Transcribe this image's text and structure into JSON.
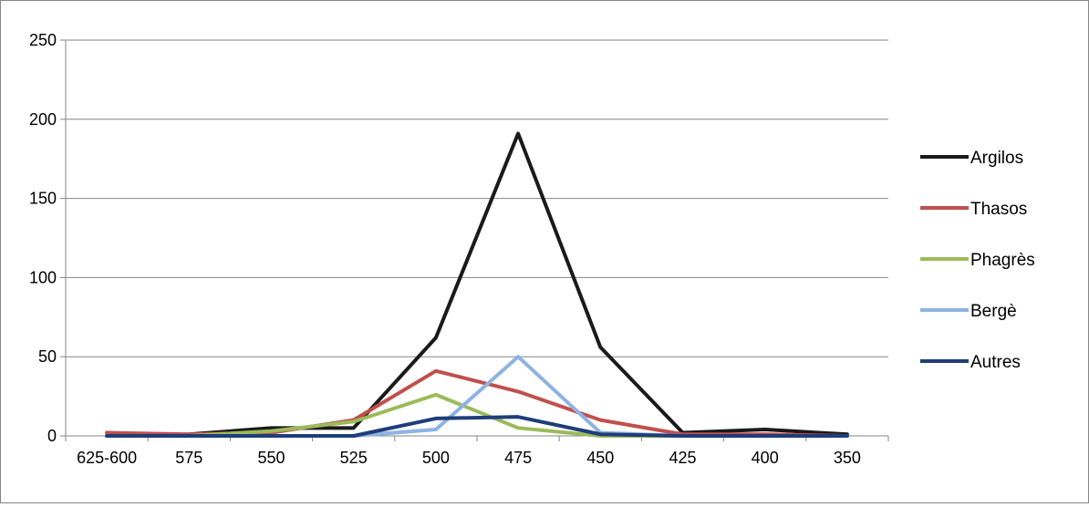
{
  "chart_data": {
    "type": "line",
    "title": "",
    "xlabel": "",
    "ylabel": "",
    "categories": [
      "625-600",
      "575",
      "550",
      "525",
      "500",
      "475",
      "450",
      "425",
      "400",
      "350"
    ],
    "ylim": [
      0,
      250
    ],
    "yticks": [
      0,
      50,
      100,
      150,
      200,
      250
    ],
    "grid": true,
    "legend_position": "right",
    "series": [
      {
        "name": "Argilos",
        "color": "#1a1a1a",
        "values": [
          0,
          1,
          5,
          5,
          62,
          191,
          56,
          2,
          4,
          1
        ]
      },
      {
        "name": "Thasos",
        "color": "#c0504d",
        "values": [
          2,
          1,
          2,
          10,
          41,
          28,
          10,
          1,
          1,
          0
        ]
      },
      {
        "name": "Phagrès",
        "color": "#9bbb59",
        "values": [
          0,
          0,
          3,
          9,
          26,
          5,
          0,
          0,
          0,
          0
        ]
      },
      {
        "name": "Bergè",
        "color": "#8db3e2",
        "values": [
          0,
          0,
          0,
          0,
          4,
          50,
          2,
          0,
          0,
          0
        ]
      },
      {
        "name": "Autres",
        "color": "#1f3d7a",
        "values": [
          0,
          0,
          0,
          0,
          11,
          12,
          1,
          0,
          0,
          0
        ]
      }
    ]
  }
}
